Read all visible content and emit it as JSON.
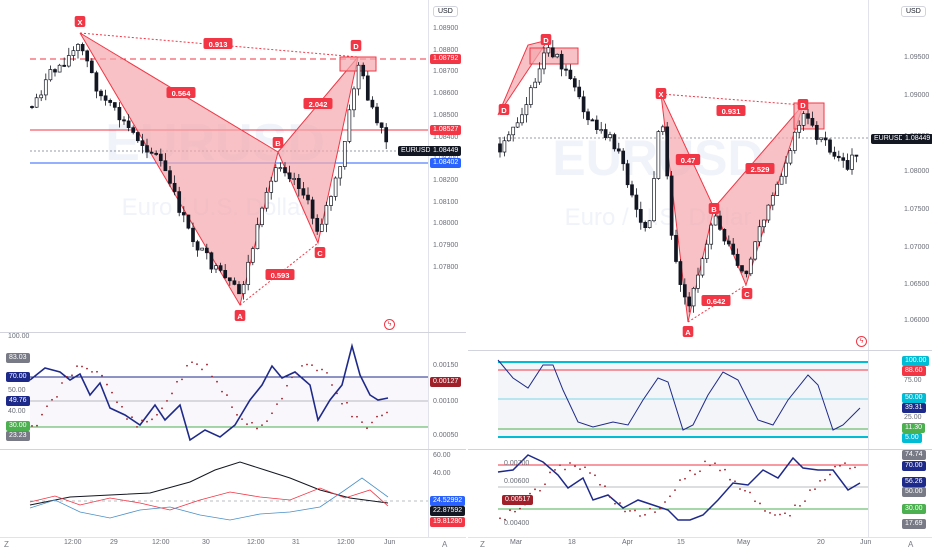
{
  "left": {
    "currency": "USD",
    "watermark_symbol": "EURUSD",
    "watermark_name": "Euro / U.S. Dollar",
    "price_ticks": [
      "1.08900",
      "1.08800",
      "1.08700",
      "1.08600",
      "1.08500",
      "1.08400",
      "1.08300",
      "1.08200",
      "1.08100",
      "1.08000",
      "1.07900",
      "1.07800"
    ],
    "price_tags": {
      "d_level": "1.08792",
      "b_level": "1.08527",
      "symbol_label": "EURUSD",
      "current": "1.08449",
      "blue_level": "1.08402"
    },
    "pattern_points": [
      "X",
      "A",
      "B",
      "C",
      "D"
    ],
    "ratios": {
      "xd": "0.913",
      "xab": "0.564",
      "bcd": "2.042",
      "abc": "0.593"
    },
    "rsi_ticks": [
      "100.00",
      "83.03",
      "70.00",
      "50.00",
      "49.76",
      "40.00",
      "30.00",
      "23.23"
    ],
    "macd_ticks": [
      "0.00150",
      "0.00127",
      "0.00100",
      "0.00050"
    ],
    "dmi_ticks": [
      "60.00",
      "40.00",
      "24.52992",
      "22.87592",
      "19.81280"
    ],
    "time_labels": [
      "12:00",
      "29",
      "12:00",
      "30",
      "12:00",
      "31",
      "12:00",
      "Jun"
    ],
    "corner_z": "Z",
    "corner_a": "A"
  },
  "right": {
    "currency": "USD",
    "watermark_symbol": "EURUSD",
    "watermark_name": "Euro / U.S. Dollar",
    "price_ticks": [
      "1.09500",
      "1.09000",
      "1.08500",
      "1.08000",
      "1.07500",
      "1.07000",
      "1.06500",
      "1.06000"
    ],
    "price_tags": {
      "symbol_label": "EURUSD",
      "current": "1.08449"
    },
    "pattern_points": [
      "D",
      "X",
      "A",
      "B",
      "C",
      "D"
    ],
    "ratios": {
      "xd": "0.931",
      "xab": "0.47",
      "bcd": "2.529",
      "abc": "0.642"
    },
    "osc1_ticks": [
      "100.00",
      "88.60",
      "75.00",
      "50.00",
      "39.31",
      "25.00",
      "11.30",
      "5.00"
    ],
    "osc2_ticks": [
      "74.74",
      "70.00",
      "56.26",
      "50.00",
      "30.00",
      "17.69"
    ],
    "osc2_left_ticks": [
      "0.00700",
      "0.00600",
      "0.00517",
      "0.00500",
      "0.00400"
    ],
    "time_labels": [
      "Mar",
      "18",
      "Apr",
      "15",
      "May",
      "20",
      "Jun"
    ],
    "corner_z": "Z",
    "corner_a": "A"
  },
  "colors": {
    "bull": "#ffffff",
    "bear": "#131722",
    "pattern_fill": "#f4a6ac",
    "pattern_line": "#f23645",
    "navy": "#1e2a8a",
    "teal": "#00bcd4",
    "green": "#4caf50",
    "red": "#f23645"
  }
}
